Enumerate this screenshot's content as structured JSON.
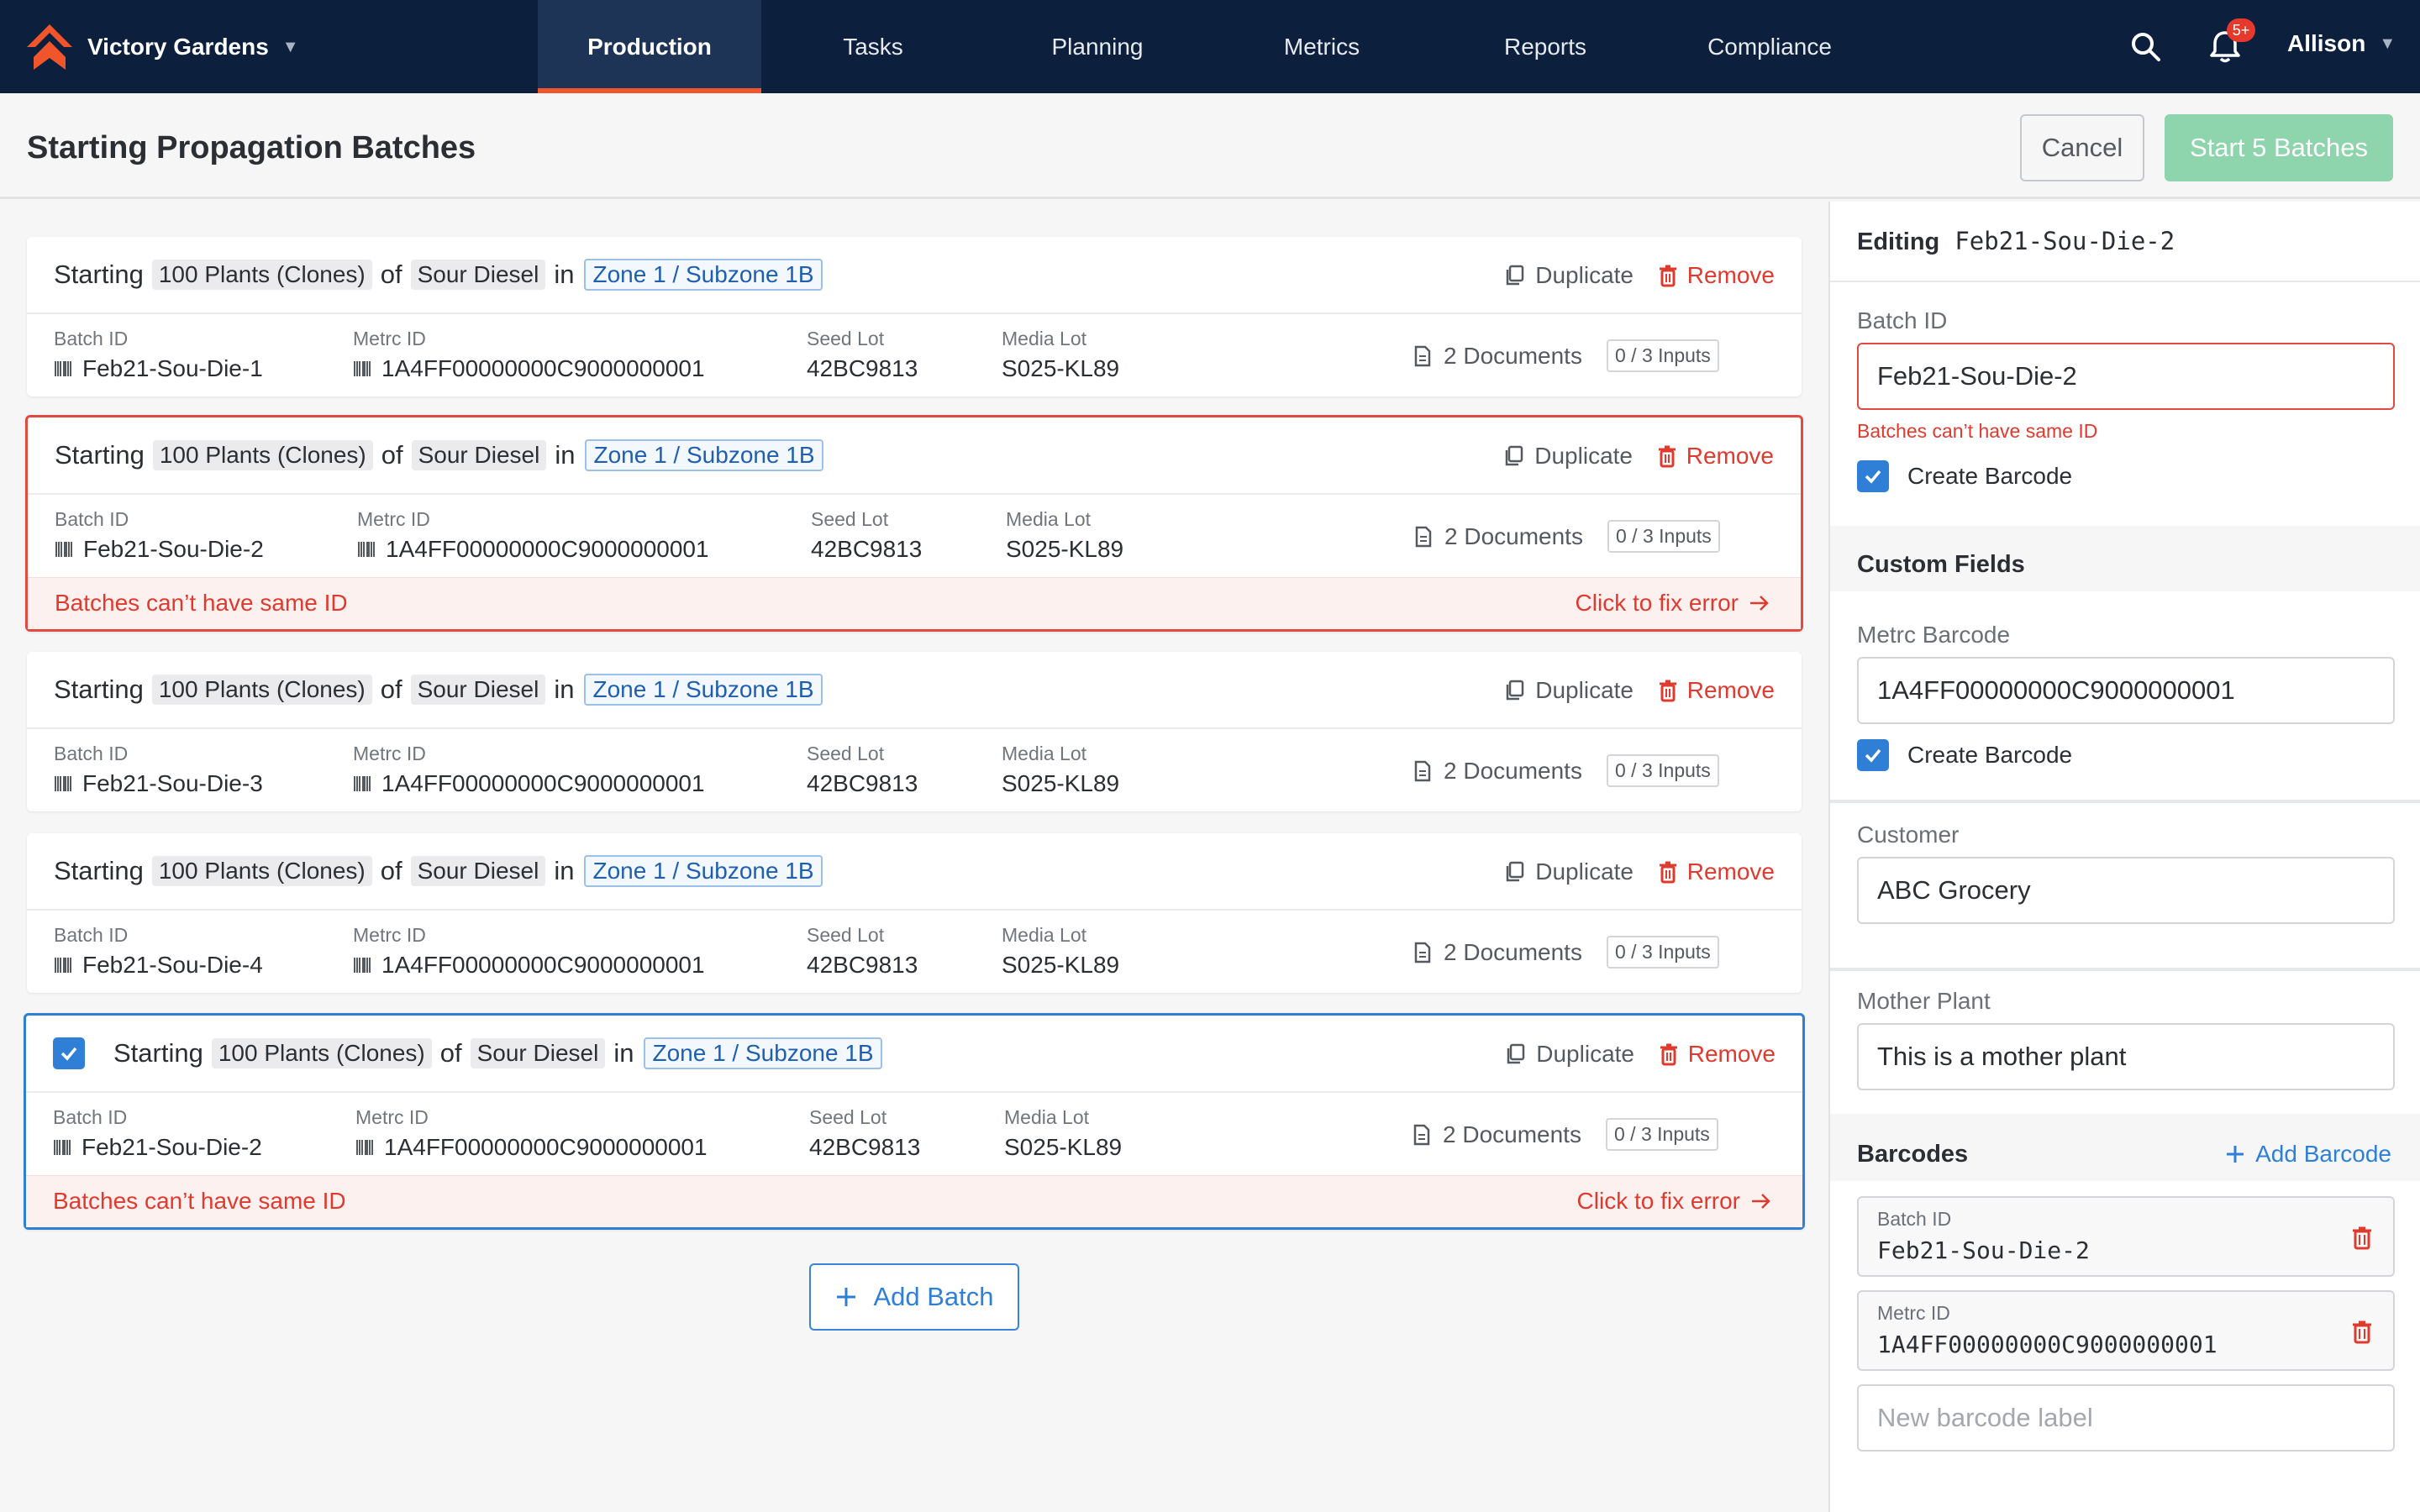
{
  "nav": {
    "brand": "Victory Gardens",
    "tabs": [
      "Production",
      "Tasks",
      "Planning",
      "Metrics",
      "Reports",
      "Compliance"
    ],
    "active_tab": "Production",
    "notification_badge": "5+",
    "user": "Allison"
  },
  "header": {
    "title": "Starting Propagation Batches",
    "cancel_label": "Cancel",
    "start_label": "Start 5 Batches"
  },
  "batches": [
    {
      "starting": "Starting",
      "quantity": "100 Plants (Clones)",
      "of": "of",
      "strain": "Sour Diesel",
      "in": "in",
      "location": "Zone 1 / Subzone 1B",
      "duplicate": "Duplicate",
      "remove": "Remove",
      "batch_id_label": "Batch ID",
      "batch_id": "Feb21-Sou-Die-1",
      "metrc_label": "Metrc ID",
      "metrc_id": "1A4FF00000000C9000000001",
      "seed_label": "Seed Lot",
      "seed_lot": "42BC9813",
      "media_label": "Media Lot",
      "media_lot": "S025-KL89",
      "documents": "2 Documents",
      "inputs": "0 / 3 Inputs"
    },
    {
      "starting": "Starting",
      "quantity": "100 Plants (Clones)",
      "of": "of",
      "strain": "Sour Diesel",
      "in": "in",
      "location": "Zone 1 / Subzone 1B",
      "duplicate": "Duplicate",
      "remove": "Remove",
      "batch_id_label": "Batch ID",
      "batch_id": "Feb21-Sou-Die-2",
      "metrc_label": "Metrc ID",
      "metrc_id": "1A4FF00000000C9000000001",
      "seed_label": "Seed Lot",
      "seed_lot": "42BC9813",
      "media_label": "Media Lot",
      "media_lot": "S025-KL89",
      "documents": "2 Documents",
      "inputs": "0 / 3 Inputs",
      "error": "Batches can’t have same ID",
      "fix": "Click to fix error"
    },
    {
      "starting": "Starting",
      "quantity": "100 Plants (Clones)",
      "of": "of",
      "strain": "Sour Diesel",
      "in": "in",
      "location": "Zone 1 / Subzone 1B",
      "duplicate": "Duplicate",
      "remove": "Remove",
      "batch_id_label": "Batch ID",
      "batch_id": "Feb21-Sou-Die-3",
      "metrc_label": "Metrc ID",
      "metrc_id": "1A4FF00000000C9000000001",
      "seed_label": "Seed Lot",
      "seed_lot": "42BC9813",
      "media_label": "Media Lot",
      "media_lot": "S025-KL89",
      "documents": "2 Documents",
      "inputs": "0 / 3 Inputs"
    },
    {
      "starting": "Starting",
      "quantity": "100 Plants (Clones)",
      "of": "of",
      "strain": "Sour Diesel",
      "in": "in",
      "location": "Zone 1 / Subzone 1B",
      "duplicate": "Duplicate",
      "remove": "Remove",
      "batch_id_label": "Batch ID",
      "batch_id": "Feb21-Sou-Die-4",
      "metrc_label": "Metrc ID",
      "metrc_id": "1A4FF00000000C9000000001",
      "seed_label": "Seed Lot",
      "seed_lot": "42BC9813",
      "media_label": "Media Lot",
      "media_lot": "S025-KL89",
      "documents": "2 Documents",
      "inputs": "0 / 3 Inputs"
    },
    {
      "starting": "Starting",
      "quantity": "100 Plants (Clones)",
      "of": "of",
      "strain": "Sour Diesel",
      "in": "in",
      "location": "Zone 1 / Subzone 1B",
      "duplicate": "Duplicate",
      "remove": "Remove",
      "batch_id_label": "Batch ID",
      "batch_id": "Feb21-Sou-Die-2",
      "metrc_label": "Metrc ID",
      "metrc_id": "1A4FF00000000C9000000001",
      "seed_label": "Seed Lot",
      "seed_lot": "42BC9813",
      "media_label": "Media Lot",
      "media_lot": "S025-KL89",
      "documents": "2 Documents",
      "inputs": "0 / 3 Inputs",
      "error": "Batches can’t have same ID",
      "fix": "Click to fix error",
      "selected": true
    }
  ],
  "add_batch_label": "Add Batch",
  "panel": {
    "editing_label": "Editing",
    "editing_id": "Feb21-Sou-Die-2",
    "batch_id_label": "Batch ID",
    "batch_id_value": "Feb21-Sou-Die-2",
    "batch_id_error": "Batches can’t have same ID",
    "create_barcode_label": "Create Barcode",
    "custom_fields_title": "Custom Fields",
    "metrc_barcode_label": "Metrc Barcode",
    "metrc_barcode_value": "1A4FF00000000C9000000001",
    "create_barcode_label_2": "Create Barcode",
    "customer_label": "Customer",
    "customer_value": "ABC Grocery",
    "mother_plant_label": "Mother Plant",
    "mother_plant_value": "This is a mother plant",
    "barcodes_title": "Barcodes",
    "add_barcode_label": "Add Barcode",
    "barcodes": [
      {
        "label": "Batch ID",
        "value": "Feb21-Sou-Die-2"
      },
      {
        "label": "Metrc ID",
        "value": "1A4FF00000000C9000000001"
      }
    ],
    "new_barcode_placeholder": "New barcode label"
  },
  "colors": {
    "nav_bg": "#0c1f3d",
    "accent": "#f0552b",
    "primary": "#2f7fd6",
    "error": "#e03a2f",
    "success_disabled": "#8ed4ad"
  },
  "icons": [
    "logo-icon",
    "chevron-down-icon",
    "search-icon",
    "bell-icon",
    "duplicate-icon",
    "trash-icon",
    "barcode-icon",
    "document-icon",
    "arrow-right-icon",
    "plus-icon",
    "checkbox-checked-icon"
  ]
}
